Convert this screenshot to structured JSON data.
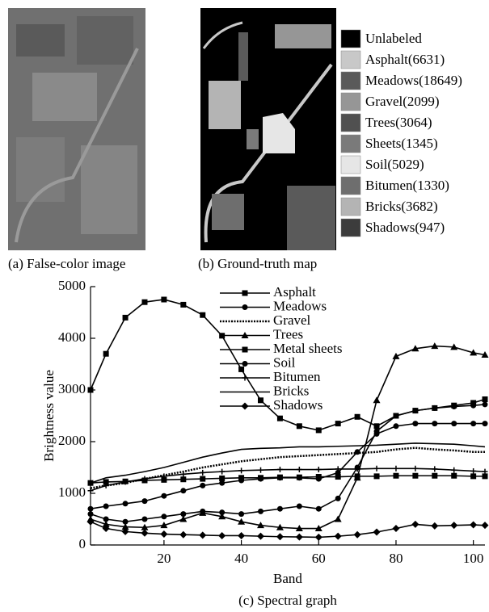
{
  "panel_a": {
    "caption": "(a) False-color image"
  },
  "panel_b": {
    "caption": "(b) Ground-truth map",
    "legend": [
      {
        "label": "Unlabeled",
        "color": "#000000"
      },
      {
        "label": "Asphalt(6631)",
        "color": "#c8c8c8"
      },
      {
        "label": "Meadows(18649)",
        "color": "#5a5a5a"
      },
      {
        "label": "Gravel(2099)",
        "color": "#969696"
      },
      {
        "label": "Trees(3064)",
        "color": "#505050"
      },
      {
        "label": "Sheets(1345)",
        "color": "#7a7a7a"
      },
      {
        "label": "Soil(5029)",
        "color": "#e6e6e6"
      },
      {
        "label": "Bitumen(1330)",
        "color": "#6e6e6e"
      },
      {
        "label": "Bricks(3682)",
        "color": "#b4b4b4"
      },
      {
        "label": "Shadows(947)",
        "color": "#3c3c3c"
      }
    ]
  },
  "chart_data": {
    "type": "line",
    "caption": "(c) Spectral graph",
    "x_label": "Band",
    "y_label": "Brightness value",
    "x": [
      1,
      5,
      10,
      15,
      20,
      25,
      30,
      35,
      40,
      45,
      50,
      55,
      60,
      65,
      70,
      75,
      80,
      85,
      90,
      95,
      100,
      103
    ],
    "xlim": [
      1,
      103
    ],
    "xticks": [
      20,
      40,
      60,
      80,
      100
    ],
    "ylim": [
      0,
      5000
    ],
    "yticks": [
      0,
      1000,
      2000,
      3000,
      4000,
      5000
    ],
    "legend_position": "top-right",
    "series": [
      {
        "name": "Asphalt",
        "color": "#000000",
        "marker": "square",
        "line_style": "solid",
        "values": [
          1200,
          1220,
          1230,
          1250,
          1260,
          1270,
          1280,
          1290,
          1300,
          1300,
          1310,
          1310,
          1320,
          1320,
          1330,
          1330,
          1340,
          1340,
          1340,
          1340,
          1330,
          1330
        ]
      },
      {
        "name": "Meadows",
        "color": "#000000",
        "marker": "circle",
        "line_style": "solid",
        "values": [
          600,
          500,
          450,
          500,
          550,
          600,
          650,
          630,
          600,
          650,
          700,
          750,
          700,
          900,
          1500,
          2200,
          2500,
          2600,
          2650,
          2680,
          2700,
          2720
        ]
      },
      {
        "name": "Gravel",
        "color": "#000000",
        "marker": "none",
        "line_style": "dotted",
        "values": [
          1100,
          1150,
          1200,
          1280,
          1350,
          1420,
          1500,
          1560,
          1620,
          1660,
          1700,
          1720,
          1740,
          1760,
          1780,
          1800,
          1850,
          1880,
          1850,
          1830,
          1800,
          1800
        ]
      },
      {
        "name": "Trees",
        "color": "#000000",
        "marker": "triangle",
        "line_style": "solid",
        "values": [
          500,
          400,
          350,
          340,
          380,
          500,
          620,
          550,
          450,
          380,
          340,
          320,
          320,
          500,
          1300,
          2800,
          3650,
          3800,
          3850,
          3830,
          3720,
          3680
        ]
      },
      {
        "name": "Metal sheets",
        "color": "#000000",
        "marker": "square",
        "line_style": "solid",
        "values": [
          3000,
          3700,
          4400,
          4700,
          4750,
          4650,
          4450,
          4050,
          3400,
          2800,
          2450,
          2300,
          2220,
          2350,
          2480,
          2300,
          2500,
          2600,
          2650,
          2700,
          2750,
          2820
        ]
      },
      {
        "name": "Soil",
        "color": "#000000",
        "marker": "circle",
        "line_style": "solid",
        "values": [
          700,
          750,
          800,
          850,
          950,
          1050,
          1150,
          1200,
          1250,
          1280,
          1300,
          1300,
          1280,
          1400,
          1800,
          2150,
          2300,
          2350,
          2350,
          2350,
          2350,
          2350
        ]
      },
      {
        "name": "Bitumen",
        "color": "#000000",
        "marker": "plus",
        "line_style": "solid",
        "values": [
          1050,
          1150,
          1220,
          1280,
          1330,
          1370,
          1400,
          1420,
          1440,
          1450,
          1460,
          1460,
          1460,
          1470,
          1470,
          1480,
          1480,
          1480,
          1470,
          1450,
          1430,
          1420
        ]
      },
      {
        "name": "Bricks",
        "color": "#000000",
        "marker": "none",
        "line_style": "solid",
        "values": [
          1200,
          1300,
          1350,
          1420,
          1500,
          1600,
          1700,
          1780,
          1850,
          1870,
          1880,
          1900,
          1900,
          1910,
          1920,
          1930,
          1950,
          1970,
          1960,
          1950,
          1920,
          1900
        ]
      },
      {
        "name": "Shadows",
        "color": "#000000",
        "marker": "diamond",
        "line_style": "solid",
        "values": [
          450,
          320,
          260,
          230,
          210,
          200,
          190,
          180,
          180,
          170,
          160,
          155,
          150,
          170,
          200,
          250,
          320,
          400,
          370,
          380,
          390,
          380
        ]
      }
    ]
  }
}
